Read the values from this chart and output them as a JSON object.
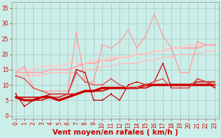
{
  "background_color": "#cceee8",
  "grid_color": "#aacccc",
  "xlabel": "Vent moyen/en rafales ( km/h )",
  "xlabel_color": "#cc0000",
  "ylabel_ticks": [
    0,
    5,
    10,
    15,
    20,
    25,
    30,
    35
  ],
  "xlim": [
    -0.5,
    23.5
  ],
  "ylim": [
    -1,
    37
  ],
  "x": [
    0,
    1,
    2,
    3,
    4,
    5,
    6,
    7,
    8,
    9,
    10,
    11,
    12,
    13,
    14,
    15,
    16,
    17,
    18,
    19,
    20,
    21,
    22,
    23
  ],
  "series": [
    {
      "y": [
        7,
        3,
        5,
        5,
        6,
        6,
        7,
        15,
        14,
        5,
        5,
        7,
        5,
        10,
        11,
        10,
        11,
        17,
        9,
        9,
        9,
        12,
        11,
        9
      ],
      "color": "#cc0000",
      "linewidth": 0.9,
      "marker": "s",
      "markersize": 2.0,
      "alpha": 1.0,
      "zorder": 5
    },
    {
      "y": [
        6,
        5,
        5,
        6,
        6,
        5,
        6,
        7,
        8,
        8,
        9,
        9,
        9,
        9,
        9,
        10,
        10,
        10,
        10,
        10,
        10,
        10,
        10,
        10
      ],
      "color": "#cc0000",
      "linewidth": 2.5,
      "marker": null,
      "markersize": 0,
      "alpha": 1.0,
      "zorder": 4
    },
    {
      "y": [
        6,
        6,
        6,
        6,
        7,
        7,
        7,
        7,
        8,
        8,
        8,
        9,
        9,
        9,
        9,
        9,
        10,
        10,
        10,
        10,
        10,
        11,
        11,
        11
      ],
      "color": "#cc0000",
      "linewidth": 1.2,
      "marker": null,
      "markersize": 0,
      "alpha": 1.0,
      "zorder": 3
    },
    {
      "y": [
        13,
        12,
        9,
        8,
        7,
        7,
        7,
        14,
        11,
        10,
        10,
        12,
        10,
        9,
        9,
        10,
        11,
        12,
        9,
        9,
        9,
        12,
        11,
        10
      ],
      "color": "#e05050",
      "linewidth": 1.0,
      "marker": "s",
      "markersize": 2.0,
      "alpha": 1.0,
      "zorder": 5
    },
    {
      "y": [
        14,
        14,
        14,
        14,
        15,
        15,
        15,
        16,
        17,
        17,
        18,
        18,
        19,
        19,
        20,
        20,
        21,
        21,
        22,
        22,
        22,
        22,
        23,
        23
      ],
      "color": "#ffaaaa",
      "linewidth": 1.5,
      "marker": null,
      "markersize": 0,
      "alpha": 1.0,
      "zorder": 2
    },
    {
      "y": [
        15,
        15,
        15,
        16,
        16,
        16,
        17,
        17,
        17,
        18,
        18,
        19,
        19,
        19,
        20,
        20,
        21,
        21,
        22,
        22,
        23,
        23,
        23,
        23
      ],
      "color": "#ffcccc",
      "linewidth": 1.5,
      "marker": null,
      "markersize": 0,
      "alpha": 0.9,
      "zorder": 2
    },
    {
      "y": [
        14,
        16,
        9,
        8,
        8,
        8,
        8,
        27,
        11,
        11,
        23,
        22,
        24,
        28,
        22,
        26,
        33,
        26,
        22,
        14,
        14,
        24,
        23,
        23
      ],
      "color": "#ff9999",
      "linewidth": 1.0,
      "marker": "s",
      "markersize": 2.0,
      "alpha": 0.9,
      "zorder": 4
    },
    {
      "y": [
        13,
        13,
        13,
        13,
        14,
        14,
        14,
        14,
        15,
        15,
        16,
        16,
        17,
        17,
        17,
        18,
        18,
        19,
        19,
        20,
        20,
        20,
        21,
        21
      ],
      "color": "#ffbbbb",
      "linewidth": 1.2,
      "marker": null,
      "markersize": 0,
      "alpha": 0.85,
      "zorder": 2
    }
  ],
  "tick_label_color": "#cc0000",
  "tick_label_fontsize": 5.5,
  "xlabel_fontsize": 7.5
}
